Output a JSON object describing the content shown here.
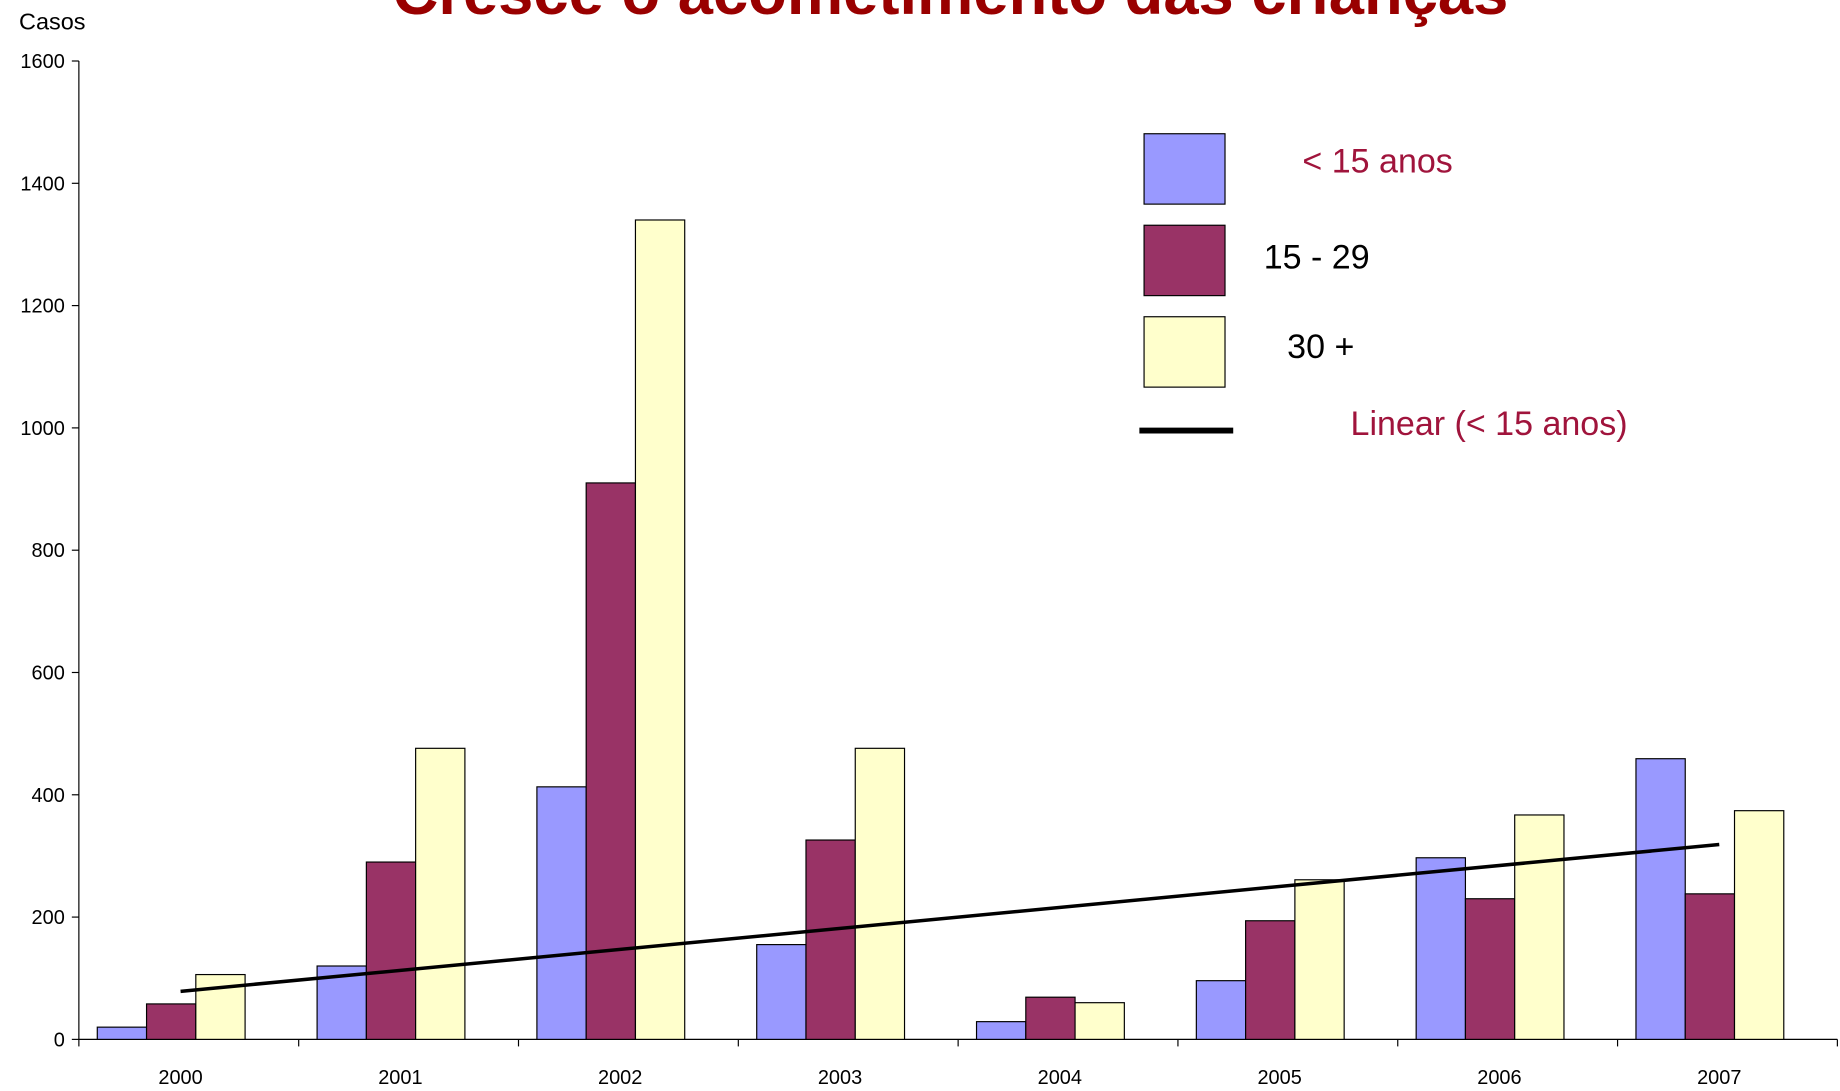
{
  "chart_data": {
    "type": "bar",
    "title": "Cresce o acometimento das crianças",
    "y_label": "Casos",
    "categories": [
      "2000",
      "2001",
      "2002",
      "2003",
      "2004",
      "2005",
      "2006",
      "2007"
    ],
    "series": [
      {
        "name": "< 15 anos",
        "color": "#9999ff",
        "values": [
          20,
          120,
          413,
          155,
          29,
          96,
          297,
          459
        ]
      },
      {
        "name": "15 - 29",
        "color": "#993366",
        "values": [
          58,
          290,
          910,
          326,
          69,
          194,
          230,
          238
        ]
      },
      {
        "name": "30 +",
        "color": "#ffffcc",
        "values": [
          106,
          476,
          1340,
          476,
          60,
          261,
          367,
          374
        ]
      }
    ],
    "trendline": {
      "name": "Linear (< 15 anos)",
      "type": "linear",
      "series": 0,
      "color": "#000000"
    },
    "ylim": [
      0,
      1600
    ],
    "yticks": [
      0,
      200,
      400,
      600,
      800,
      1000,
      1200,
      1400,
      1600
    ],
    "grid": false
  }
}
